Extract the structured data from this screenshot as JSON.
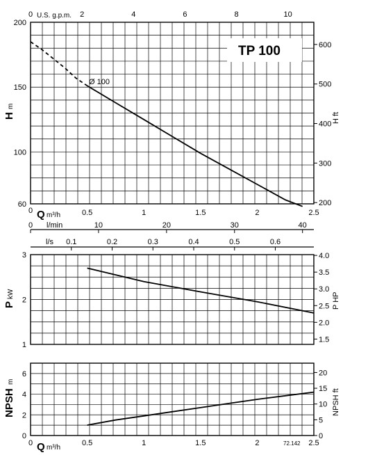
{
  "model": "TP 100",
  "impeller_label": "Ø 100",
  "figure_code": "72.142",
  "colors": {
    "line": "#000000",
    "grid": "#000000",
    "background": "#ffffff"
  },
  "axes": {
    "q_m3h": {
      "title": "Q",
      "unit": "m³/h",
      "ticks": [
        "0",
        "0.5",
        "1",
        "1.5",
        "2",
        "2.5"
      ]
    },
    "q_gpm": {
      "title": "U.S. g.p.m.",
      "ticks": [
        "0",
        "2",
        "4",
        "6",
        "8",
        "10"
      ]
    },
    "q_lmin": {
      "title": "l/min",
      "ticks": [
        "0",
        "10",
        "20",
        "30",
        "40"
      ]
    },
    "q_ls": {
      "title": "l/s",
      "ticks": [
        "0.1",
        "0.2",
        "0.3",
        "0.4",
        "0.5",
        "0.6"
      ]
    },
    "h_m": {
      "title": "H",
      "unit": "m",
      "ticks": [
        "60",
        "100",
        "150",
        "200"
      ]
    },
    "h_ft": {
      "title": "H ft",
      "ticks": [
        "200",
        "300",
        "400",
        "500",
        "600"
      ]
    },
    "p_kw": {
      "title": "P",
      "unit": "kW",
      "ticks": [
        "1",
        "2",
        "3"
      ]
    },
    "p_hp": {
      "title": "P HP",
      "ticks": [
        "1.5",
        "2.0",
        "2.5",
        "3.0",
        "3.5",
        "4.0"
      ]
    },
    "npsh_m": {
      "title": "NPSH",
      "unit": "m",
      "ticks": [
        "0",
        "2",
        "4",
        "6"
      ]
    },
    "npsh_ft": {
      "title": "NPSH ft",
      "ticks": [
        "0",
        "5",
        "10",
        "15",
        "20"
      ]
    }
  },
  "chart_data": [
    {
      "type": "line",
      "title": "TP 100",
      "xlabel": "Q m³/h",
      "ylabel": "H m",
      "xlim": [
        0,
        2.5
      ],
      "ylim": [
        60,
        200
      ],
      "grid": true,
      "secondary_axes": {
        "top": "U.S. g.p.m. (0–10)",
        "right": "H ft (200–600)"
      },
      "series": [
        {
          "name": "Ø 100",
          "x": [
            0,
            0.1,
            0.2,
            0.3,
            0.4,
            0.5,
            0.75,
            1.0,
            1.25,
            1.5,
            1.75,
            2.0,
            2.25,
            2.4
          ],
          "y": [
            185,
            179,
            172,
            165,
            157,
            151,
            138,
            125,
            112,
            99,
            87,
            75,
            63,
            58
          ],
          "dashed_until_x": 0.5
        }
      ]
    },
    {
      "type": "line",
      "xlabel": "Q m³/h",
      "ylabel": "P kW",
      "xlim": [
        0,
        2.5
      ],
      "ylim": [
        1,
        3
      ],
      "grid": true,
      "secondary_axes": {
        "right": "P HP (1.5–4.0)"
      },
      "series": [
        {
          "x": [
            0.5,
            1.0,
            1.5,
            2.0,
            2.5
          ],
          "y": [
            2.7,
            2.4,
            2.17,
            1.95,
            1.7
          ]
        }
      ]
    },
    {
      "type": "line",
      "xlabel": "Q m³/h",
      "ylabel": "NPSH m",
      "xlim": [
        0,
        2.5
      ],
      "ylim": [
        0,
        7
      ],
      "grid": true,
      "secondary_axes": {
        "right": "NPSH ft (0–20)"
      },
      "series": [
        {
          "x": [
            0.5,
            0.75,
            1.0,
            1.25,
            1.5,
            1.75,
            2.0,
            2.25,
            2.5
          ],
          "y": [
            1.0,
            1.5,
            1.9,
            2.3,
            2.7,
            3.1,
            3.5,
            3.85,
            4.2
          ]
        }
      ]
    }
  ]
}
